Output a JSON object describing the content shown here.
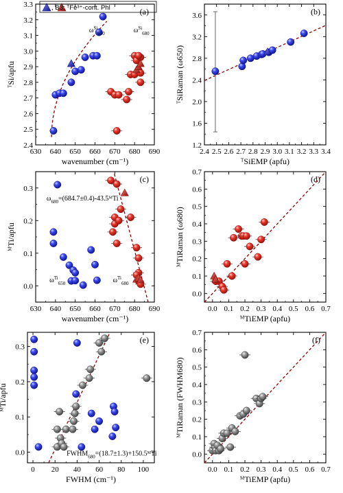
{
  "figure": {
    "legend": {
      "label": ", B3: ᵀFe³⁺-cont. Phl"
    },
    "colors": {
      "blue": "#1f2fe6",
      "red": "#e8231c",
      "gray": "#8a8a8a",
      "trend": "#8b0000"
    }
  },
  "chart_data": [
    {
      "panel": "(a)",
      "type": "scatter",
      "xlabel": "wavenumber (cm⁻¹)",
      "ylabel": "ᵀSi/apfu",
      "xlim": [
        630,
        690
      ],
      "ylim": [
        2.4,
        3.3
      ],
      "xticks": [
        630,
        640,
        650,
        660,
        670,
        680,
        690
      ],
      "yticks": [
        2.4,
        2.5,
        2.6,
        2.7,
        2.8,
        2.9,
        3.0,
        3.1,
        3.2,
        3.3
      ],
      "annotations": [
        {
          "text": "ωSi650",
          "x": 657,
          "y": 3.12
        },
        {
          "text": "ωSi680",
          "x": 679.5,
          "y": 3.12
        }
      ],
      "series": [
        {
          "color": "blue",
          "marker": "circle",
          "points": [
            [
              639,
              2.49
            ],
            [
              640,
              2.72
            ],
            [
              642,
              2.73
            ],
            [
              644,
              2.73
            ],
            [
              648,
              2.8
            ],
            [
              650,
              2.87
            ],
            [
              653,
              2.88
            ],
            [
              655,
              2.96
            ],
            [
              659,
              2.97
            ],
            [
              661,
              2.97
            ],
            [
              662,
              3.12
            ],
            [
              664,
              3.22
            ]
          ]
        },
        {
          "color": "blue",
          "marker": "triangle",
          "points": [
            [
              648,
              2.92
            ]
          ]
        },
        {
          "color": "red",
          "marker": "circle",
          "points": [
            [
              668,
              2.74
            ],
            [
              670,
              2.72
            ],
            [
              671,
              2.49
            ],
            [
              672,
              2.72
            ],
            [
              676,
              2.69
            ],
            [
              677,
              2.74
            ],
            [
              678,
              2.85
            ],
            [
              680,
              2.97
            ],
            [
              680,
              2.85
            ],
            [
              681,
              2.94
            ],
            [
              683,
              2.96
            ],
            [
              683,
              2.8
            ],
            [
              683,
              2.86
            ],
            [
              682,
              2.97
            ]
          ]
        },
        {
          "color": "red",
          "marker": "triangle",
          "points": [
            [
              681,
              2.88
            ],
            [
              682,
              2.9
            ],
            [
              683,
              2.92
            ]
          ]
        }
      ],
      "trend": "ᵀSi = 2.45 + 0.14·√(wavenumber − 638)"
    },
    {
      "panel": "(b)",
      "type": "scatter",
      "xlabel": "ᵀSiEMP (apfu)",
      "ylabel": "ᵀSiRaman (ω650)",
      "xlim": [
        2.4,
        3.4
      ],
      "ylim": [
        1.2,
        3.8
      ],
      "xticks": [
        2.4,
        2.5,
        2.6,
        2.7,
        2.8,
        2.9,
        3.0,
        3.1,
        3.2,
        3.3,
        3.4
      ],
      "yticks": [
        1.2,
        1.6,
        2.0,
        2.4,
        2.8,
        3.2,
        3.6
      ],
      "series": [
        {
          "color": "blue",
          "marker": "circle",
          "points": [
            [
              2.49,
              2.56
            ],
            [
              2.71,
              2.65
            ],
            [
              2.72,
              2.76
            ],
            [
              2.78,
              2.8
            ],
            [
              2.83,
              2.84
            ],
            [
              2.87,
              2.87
            ],
            [
              2.88,
              2.88
            ],
            [
              2.93,
              2.91
            ],
            [
              2.96,
              2.95
            ],
            [
              3.11,
              3.1
            ],
            [
              3.22,
              3.26
            ]
          ]
        },
        {
          "color": "blue",
          "marker": "triangle",
          "points": [
            [
              2.92,
              2.92
            ]
          ]
        }
      ],
      "trend": "y = 1.02·x − 0.06"
    },
    {
      "panel": "(c)",
      "type": "scatter",
      "xlabel": "wavenumber (cm⁻¹)",
      "ylabel": "ᴹTi/apfu",
      "xlim": [
        630,
        690
      ],
      "ylim": [
        -0.05,
        0.35
      ],
      "xticks": [
        630,
        640,
        650,
        660,
        670,
        680,
        690
      ],
      "yticks": [
        0.0,
        0.1,
        0.2,
        0.3
      ],
      "annotations": [
        {
          "text": "ω680=(684.7±0.4)-43.5ᴹTi",
          "x": 635.5,
          "y": 0.262
        },
        {
          "text": "ωTi650",
          "x": 637,
          "y": 0.011
        },
        {
          "text": "ωTi680",
          "x": 669,
          "y": 0.011
        }
      ],
      "series": [
        {
          "color": "blue",
          "marker": "circle",
          "points": [
            [
              641,
              0.31
            ],
            [
              639,
              0.165
            ],
            [
              639,
              0.13
            ],
            [
              644,
              0.088
            ],
            [
              647,
              0.063
            ],
            [
              649,
              0.048
            ],
            [
              648,
              0.015
            ],
            [
              650,
              0.04
            ],
            [
              650,
              0.016
            ],
            [
              654,
              0.002
            ],
            [
              658,
              0.11
            ],
            [
              660,
              0.065
            ],
            [
              661,
              0.017
            ]
          ]
        },
        {
          "color": "red",
          "marker": "circle",
          "points": [
            [
              668,
              0.323
            ],
            [
              671,
              0.312
            ],
            [
              673,
              0.235
            ],
            [
              670,
              0.21
            ],
            [
              669,
              0.165
            ],
            [
              670,
              0.19
            ],
            [
              672,
              0.2
            ],
            [
              671,
              0.13
            ],
            [
              678,
              0.21
            ],
            [
              681,
              0.117
            ],
            [
              682,
              0.085
            ],
            [
              682,
              0.04
            ],
            [
              682,
              0.015
            ],
            [
              683,
              0.005
            ],
            [
              681,
              0.033
            ]
          ]
        },
        {
          "color": "red",
          "marker": "triangle",
          "points": [
            [
              675,
              0.285
            ],
            [
              681,
              0.02
            ],
            [
              682,
              0.024
            ],
            [
              683,
              0.018
            ]
          ]
        }
      ],
      "trend": "ω680 = 684.7 − 43.5·ᴹTi"
    },
    {
      "panel": "(d)",
      "type": "scatter",
      "xlabel": "ᴹTiEMP (apfu)",
      "ylabel": "ᴹTiRaman (ω680)",
      "xlim": [
        -0.05,
        0.7
      ],
      "ylim": [
        -0.05,
        0.7
      ],
      "xticks": [
        0.0,
        0.1,
        0.2,
        0.3,
        0.4,
        0.5,
        0.6,
        0.7
      ],
      "yticks": [
        0.0,
        0.1,
        0.2,
        0.3,
        0.4,
        0.5,
        0.6,
        0.7
      ],
      "series": [
        {
          "color": "red",
          "marker": "circle",
          "points": [
            [
              0.02,
              0.07
            ],
            [
              0.04,
              0.07
            ],
            [
              0.06,
              0.04
            ],
            [
              0.07,
              0.02
            ],
            [
              0.09,
              0.17
            ],
            [
              0.12,
              0.1
            ],
            [
              0.13,
              0.32
            ],
            [
              0.16,
              0.37
            ],
            [
              0.18,
              0.33
            ],
            [
              0.19,
              0.33
            ],
            [
              0.2,
              0.17
            ],
            [
              0.21,
              0.33
            ],
            [
              0.23,
              0.27
            ],
            [
              0.28,
              0.21
            ],
            [
              0.3,
              0.31
            ],
            [
              0.32,
              0.41
            ]
          ]
        },
        {
          "color": "red",
          "marker": "triangle",
          "points": [
            [
              0.01,
              0.1
            ],
            [
              0.02,
              0.08
            ]
          ]
        }
      ],
      "trend": "y = x"
    },
    {
      "panel": "(e)",
      "type": "scatter",
      "xlabel": "FWHM (cm⁻¹)",
      "ylabel": "ᴹTi/apfu",
      "xlim": [
        -5,
        110
      ],
      "ylim": [
        -0.03,
        0.34
      ],
      "xticks": [
        0,
        20,
        40,
        60,
        80,
        100
      ],
      "yticks": [
        0.0,
        0.1,
        0.2,
        0.3
      ],
      "annotations": [
        {
          "text": "FWHM680=(18.7±1.3)+150.5ᴹTi",
          "x": 30.5,
          "y": -0.01
        }
      ],
      "series": [
        {
          "color": "blue",
          "marker": "circle",
          "points": [
            [
              1,
              0.32
            ],
            [
              1,
              0.285
            ],
            [
              1,
              0.232
            ],
            [
              1,
              0.213
            ],
            [
              1,
              0.19
            ],
            [
              5,
              0.015
            ],
            [
              39,
              0.165
            ],
            [
              40,
              0.31
            ],
            [
              44,
              0.015
            ],
            [
              53,
              0.11
            ],
            [
              56,
              0.065
            ],
            [
              60,
              0.088
            ],
            [
              73,
              0.13
            ],
            [
              74,
              0.115
            ],
            [
              75,
              0.07
            ],
            [
              72,
              0.045
            ]
          ]
        },
        {
          "color": "gray",
          "marker": "circle",
          "points": [
            [
              22,
              0.015
            ],
            [
              22,
              0.065
            ],
            [
              24,
              0.115
            ],
            [
              25,
              0.04
            ],
            [
              26,
              0.025
            ],
            [
              28,
              0.015
            ],
            [
              30,
              0.065
            ],
            [
              36,
              0.065
            ],
            [
              37,
              0.088
            ],
            [
              38,
              0.11
            ],
            [
              39,
              0.13
            ],
            [
              45,
              0.19
            ],
            [
              51,
              0.21
            ],
            [
              52,
              0.235
            ],
            [
              60,
              0.31
            ],
            [
              62,
              0.285
            ],
            [
              65,
              0.323
            ],
            [
              103,
              0.21
            ]
          ]
        }
      ],
      "trend": "FWHM680 = 18.7 + 150.5·ᴹTi"
    },
    {
      "panel": "(f)",
      "type": "scatter",
      "xlabel": "ᴹTiEMP (apfu)",
      "ylabel": "ᴹTiRaman (FWHM680)",
      "xlim": [
        -0.05,
        0.7
      ],
      "ylim": [
        -0.05,
        0.7
      ],
      "xticks": [
        0.0,
        0.1,
        0.2,
        0.3,
        0.4,
        0.5,
        0.6,
        0.7
      ],
      "yticks": [
        0.0,
        0.1,
        0.2,
        0.3,
        0.4,
        0.5,
        0.6,
        0.7
      ],
      "series": [
        {
          "color": "gray",
          "marker": "circle",
          "points": [
            [
              0.0,
              0.02
            ],
            [
              0.01,
              0.06
            ],
            [
              0.015,
              0.04
            ],
            [
              0.02,
              0.02
            ],
            [
              0.03,
              0.05
            ],
            [
              0.04,
              0.02
            ],
            [
              0.05,
              0.03
            ],
            [
              0.06,
              0.09
            ],
            [
              0.07,
              0.12
            ],
            [
              0.09,
              0.12
            ],
            [
              0.11,
              0.04
            ],
            [
              0.12,
              0.15
            ],
            [
              0.14,
              0.13
            ],
            [
              0.17,
              0.22
            ],
            [
              0.19,
              0.23
            ],
            [
              0.2,
              0.57
            ],
            [
              0.21,
              0.25
            ],
            [
              0.27,
              0.32
            ],
            [
              0.29,
              0.29
            ],
            [
              0.3,
              0.32
            ],
            [
              0.31,
              0.33
            ]
          ]
        }
      ],
      "trend": "y = x"
    }
  ]
}
